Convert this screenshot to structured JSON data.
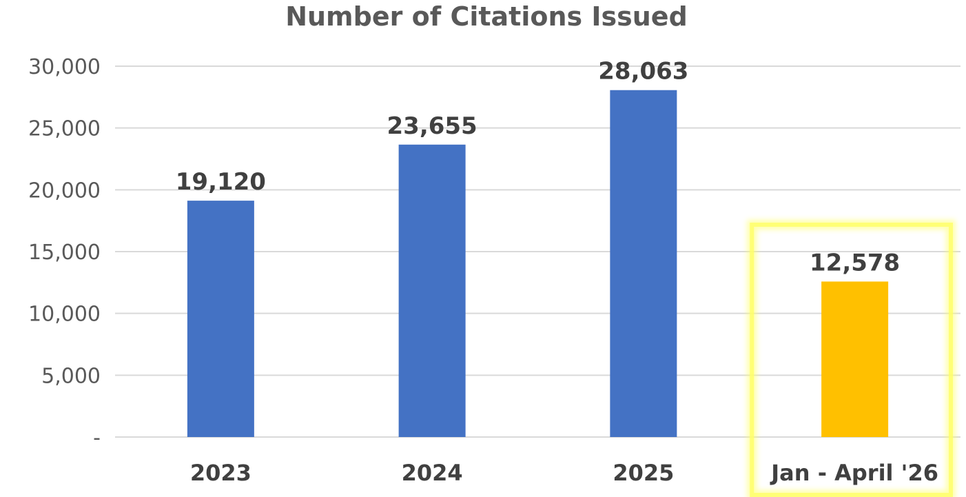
{
  "chart_data": {
    "type": "bar",
    "title": "Number of Citations Issued",
    "categories": [
      "2023",
      "2024",
      "2025",
      "Jan - April '26"
    ],
    "values": [
      19120,
      23655,
      28063,
      12578
    ],
    "data_labels": [
      "19,120",
      "23,655",
      "28,063",
      "12,578"
    ],
    "y_tick_values": [
      0,
      5000,
      10000,
      15000,
      20000,
      25000,
      30000
    ],
    "y_tick_labels": [
      "-",
      "5,000",
      "10,000",
      "15,000",
      "20,000",
      "25,000",
      "30,000"
    ],
    "ylim": [
      0,
      30000
    ],
    "xlabel": "",
    "ylabel": "",
    "grid": true,
    "legend": "none",
    "bar_colors": [
      "#4472c4",
      "#4472c4",
      "#4472c4",
      "#ffc000"
    ],
    "highlight": {
      "category": "Jan - April '26",
      "color": "#ffff66"
    }
  }
}
